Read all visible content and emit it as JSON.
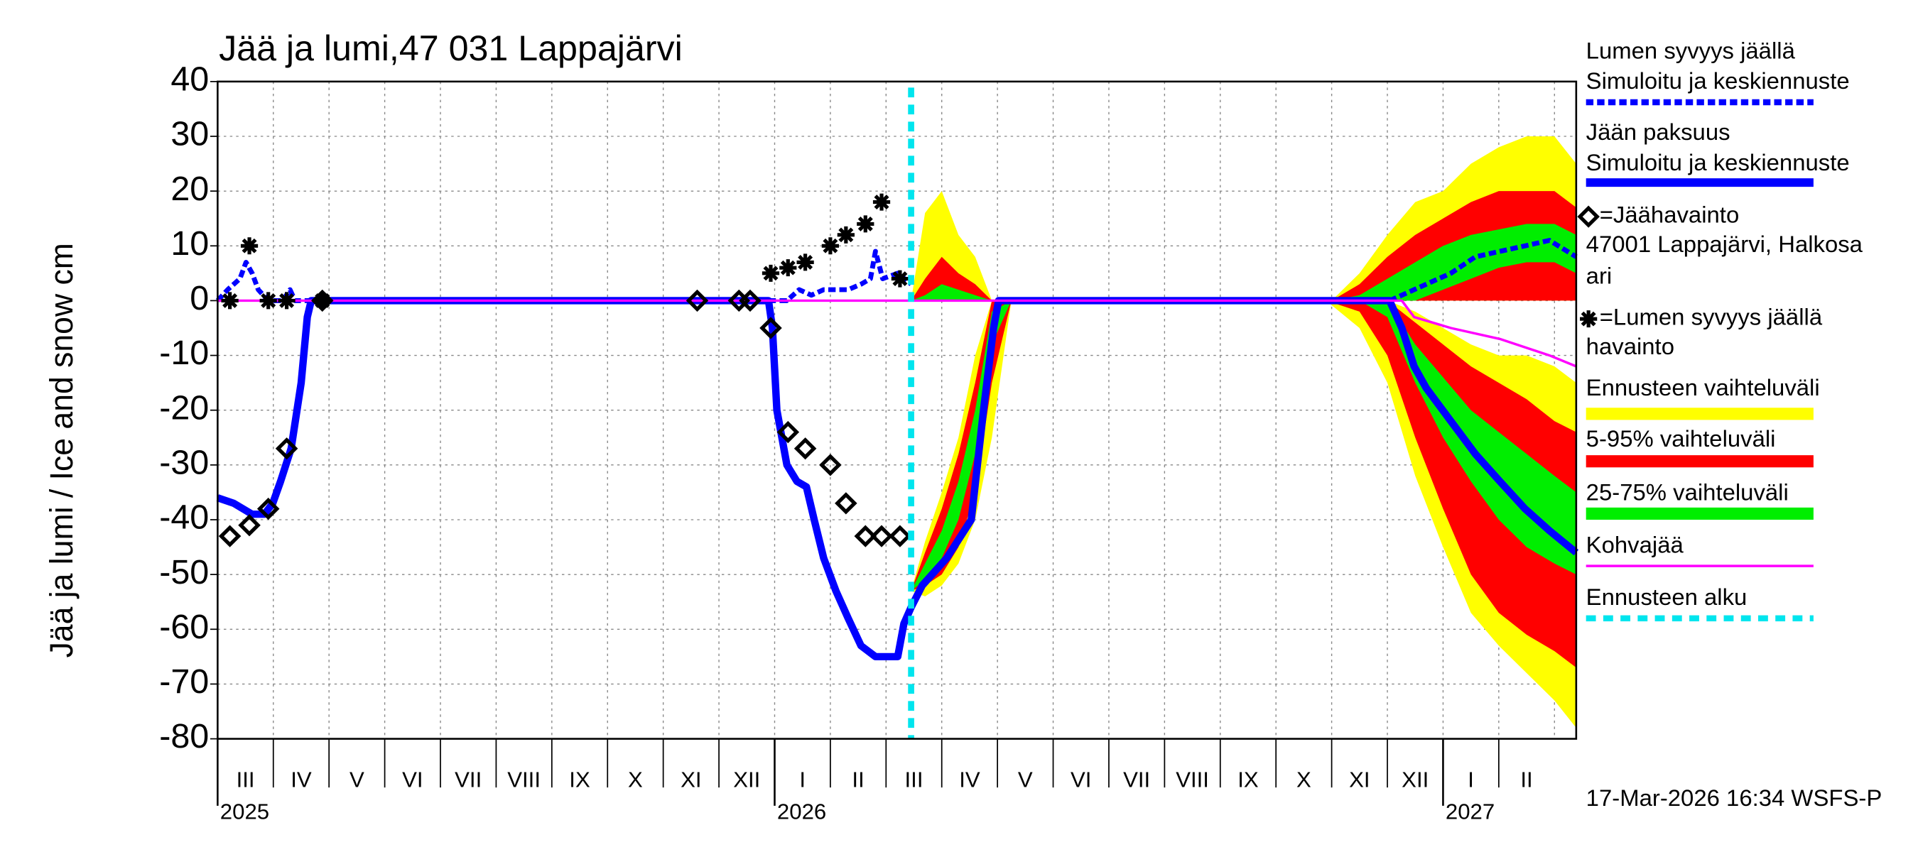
{
  "chart_data": {
    "type": "line",
    "title": "Jää ja lumi,47 031 Lappajärvi",
    "y_label": "Jää ja lumi / Ice and snow    cm",
    "footer": "17-Mar-2026 16:34 WSFS-P",
    "grid": true,
    "xlim": [
      0,
      24.39
    ],
    "ylim": [
      -80,
      40
    ],
    "yticks": [
      -80,
      -70,
      -60,
      -50,
      -40,
      -30,
      -20,
      -10,
      0,
      10,
      20,
      30,
      40
    ],
    "xticks": [
      {
        "value": 0.5,
        "label": "III"
      },
      {
        "value": 1.5,
        "label": "IV"
      },
      {
        "value": 2.5,
        "label": "V"
      },
      {
        "value": 3.5,
        "label": "VI"
      },
      {
        "value": 4.5,
        "label": "VII"
      },
      {
        "value": 5.5,
        "label": "VIII"
      },
      {
        "value": 6.5,
        "label": "IX"
      },
      {
        "value": 7.5,
        "label": "X"
      },
      {
        "value": 8.5,
        "label": "XI"
      },
      {
        "value": 9.5,
        "label": "XII"
      },
      {
        "value": 10.5,
        "label": "I"
      },
      {
        "value": 11.5,
        "label": "II"
      },
      {
        "value": 12.5,
        "label": "III"
      },
      {
        "value": 13.5,
        "label": "IV"
      },
      {
        "value": 14.5,
        "label": "V"
      },
      {
        "value": 15.5,
        "label": "VI"
      },
      {
        "value": 16.5,
        "label": "VII"
      },
      {
        "value": 17.5,
        "label": "VIII"
      },
      {
        "value": 18.5,
        "label": "IX"
      },
      {
        "value": 19.5,
        "label": "X"
      },
      {
        "value": 20.5,
        "label": "XI"
      },
      {
        "value": 21.5,
        "label": "XII"
      },
      {
        "value": 22.5,
        "label": "I"
      },
      {
        "value": 23.5,
        "label": "II"
      }
    ],
    "year_ticks": [
      {
        "value": 0,
        "label": "2025"
      },
      {
        "value": 10,
        "label": "2026"
      },
      {
        "value": 22,
        "label": "2027"
      }
    ],
    "series": [
      {
        "name": [
          "Lumen syvyys jäällä",
          "Simuloitu ja keskiennuste"
        ],
        "color": "#0000ff",
        "style": "dashed",
        "x": [
          0,
          0.18,
          0.4,
          0.51,
          0.62,
          0.73,
          0.91,
          1.17,
          1.3,
          1.39,
          1.68,
          null,
          9.89,
          10.22,
          10.44,
          10.66,
          10.88,
          11.32,
          11.55,
          11.72,
          11.81,
          11.94,
          12.21,
          12.45,
          null,
          21.04,
          21.48,
          22.14,
          22.58,
          23.02,
          23.47,
          23.91,
          24.39
        ],
        "values": [
          0,
          2,
          4,
          7,
          5,
          2,
          0,
          0,
          2,
          0,
          0,
          null,
          0,
          0,
          2,
          1,
          2,
          2,
          3,
          4,
          9,
          4,
          5,
          3,
          null,
          0,
          2,
          5,
          8,
          9,
          10,
          11,
          8
        ]
      },
      {
        "name": [
          "Jään paksuus",
          "Simuloitu ja keskiennuste"
        ],
        "color": "#0000ff",
        "style": "solid",
        "x": [
          0,
          0.29,
          0.62,
          0.84,
          0.99,
          1.13,
          1.32,
          1.5,
          1.61,
          1.68,
          9.89,
          9.96,
          10.04,
          10.22,
          10.4,
          10.57,
          10.71,
          10.88,
          11.1,
          11.32,
          11.55,
          11.81,
          12.21,
          12.32,
          12.45,
          12.65,
          13.09,
          13.53,
          13.75,
          13.93,
          14.02,
          21.04,
          21.26,
          21.48,
          21.7,
          22.14,
          22.58,
          23.02,
          23.47,
          23.91,
          24.39
        ],
        "values": [
          -36,
          -37,
          -39,
          -39,
          -37,
          -33,
          -27,
          -15,
          -3,
          0,
          0,
          -5,
          -20,
          -30,
          -33,
          -34,
          -40,
          -47,
          -53,
          -58,
          -63,
          -65,
          -65,
          -59,
          -56,
          -52,
          -47,
          -40,
          -20,
          -5,
          0,
          0,
          -5,
          -12,
          -16,
          -22,
          -28,
          -33,
          -38,
          -42,
          -46
        ]
      },
      {
        "name": [
          "=Jäähavainto",
          "47001 Lappajärvi, Halkosa",
          "ari"
        ],
        "color": "#000000",
        "marker": "diamond",
        "x": [
          0.22,
          0.57,
          0.91,
          1.24,
          1.88,
          8.61,
          9.36,
          9.56,
          9.93,
          10.24,
          10.55,
          11.0,
          11.28,
          11.63,
          11.92,
          12.25
        ],
        "values": [
          -43,
          -41,
          -38,
          -27,
          0,
          0,
          0,
          0,
          -5,
          -24,
          -27,
          -30,
          -37,
          -43,
          -43,
          -43
        ]
      },
      {
        "name": [
          "=Lumen syvyys jäällä",
          "havainto"
        ],
        "color": "#000000",
        "marker": "asterisk",
        "x": [
          0.22,
          0.57,
          0.91,
          1.24,
          1.88,
          9.93,
          10.24,
          10.55,
          11.0,
          11.28,
          11.63,
          11.92,
          12.25
        ],
        "values": [
          0,
          10,
          0,
          0,
          0,
          5,
          6,
          7,
          10,
          12,
          14,
          18,
          4
        ]
      },
      {
        "name": [
          "Kohvajää"
        ],
        "color": "#ff00ff",
        "style": "thin",
        "x": [
          0,
          21.26,
          21.48,
          22.14,
          23.02,
          23.91,
          24.39
        ],
        "values": [
          0,
          0,
          -3,
          -5,
          -7,
          -10,
          -12
        ]
      }
    ],
    "bands": [
      {
        "name": "Ennusteen vaihteluväli",
        "color": "#ffff00",
        "areas": [
          {
            "x": [
              12.45,
              12.7,
              13.0,
              13.3,
              13.6,
              13.9,
              14.25
            ],
            "low": [
              -53,
              -54,
              -52,
              -48,
              -40,
              -25,
              0
            ],
            "high": [
              -53,
              -44,
              -35,
              -25,
              -10,
              0,
              0
            ]
          },
          {
            "x": [
              12.45,
              12.7,
              13.0,
              13.3,
              13.6,
              13.9
            ],
            "low": [
              0,
              0,
              0,
              0,
              0,
              0
            ],
            "high": [
              0,
              16,
              20,
              12,
              8,
              0
            ]
          },
          {
            "x": [
              19.9,
              20.5,
              21.0,
              21.5,
              22.0,
              22.5,
              23.0,
              23.5,
              24.0,
              24.39
            ],
            "low": [
              0,
              -5,
              -15,
              -32,
              -45,
              -57,
              -63,
              -68,
              -73,
              -78
            ],
            "high": [
              0,
              0,
              0,
              -2,
              -5,
              -8,
              -10,
              -10,
              -12,
              -15
            ]
          },
          {
            "x": [
              20.0,
              20.5,
              21.0,
              21.5,
              22.0,
              22.5,
              23.0,
              23.5,
              24.0,
              24.39
            ],
            "low": [
              0,
              0,
              0,
              0,
              0,
              0,
              0,
              0,
              0,
              0
            ],
            "high": [
              0,
              5,
              12,
              18,
              20,
              25,
              28,
              30,
              30,
              25
            ]
          }
        ]
      },
      {
        "name": "5-95% vaihteluväli",
        "color": "#ff0000",
        "areas": [
          {
            "x": [
              12.45,
              12.7,
              13.0,
              13.3,
              13.6,
              13.9,
              14.25
            ],
            "low": [
              -53,
              -52,
              -50,
              -45,
              -35,
              -15,
              0
            ],
            "high": [
              -53,
              -46,
              -38,
              -28,
              -15,
              0,
              0
            ]
          },
          {
            "x": [
              12.45,
              12.7,
              13.0,
              13.3,
              13.6,
              13.9
            ],
            "low": [
              0,
              0,
              0,
              0,
              0,
              0
            ],
            "high": [
              0,
              4,
              8,
              5,
              3,
              0
            ]
          },
          {
            "x": [
              19.9,
              20.5,
              21.0,
              21.5,
              22.0,
              22.5,
              23.0,
              23.5,
              24.0,
              24.39
            ],
            "low": [
              0,
              -2,
              -10,
              -25,
              -38,
              -50,
              -57,
              -61,
              -64,
              -67
            ],
            "high": [
              0,
              0,
              0,
              -4,
              -8,
              -12,
              -15,
              -18,
              -22,
              -24
            ]
          },
          {
            "x": [
              20.0,
              20.5,
              21.0,
              21.5,
              22.0,
              22.5,
              23.0,
              23.5,
              24.0,
              24.39
            ],
            "low": [
              0,
              0,
              0,
              0,
              0,
              0,
              0,
              0,
              0,
              0
            ],
            "high": [
              0,
              3,
              8,
              12,
              15,
              18,
              20,
              20,
              20,
              17
            ]
          }
        ]
      },
      {
        "name": "25-75% vaihteluväli",
        "color": "#00ee00",
        "areas": [
          {
            "x": [
              12.45,
              12.7,
              13.0,
              13.3,
              13.6,
              13.9,
              14.25
            ],
            "low": [
              -53,
              -51,
              -47,
              -40,
              -28,
              -8,
              0
            ],
            "high": [
              -53,
              -48,
              -42,
              -33,
              -20,
              -2,
              0
            ]
          },
          {
            "x": [
              12.45,
              12.7,
              13.0,
              13.3,
              13.6,
              13.9
            ],
            "low": [
              0,
              0,
              0,
              0,
              0,
              0
            ],
            "high": [
              0,
              1,
              3,
              2,
              1,
              0
            ]
          },
          {
            "x": [
              19.9,
              20.5,
              21.0,
              21.5,
              22.0,
              22.5,
              23.0,
              23.5,
              24.0,
              24.39
            ],
            "low": [
              0,
              0,
              -3,
              -15,
              -25,
              -33,
              -40,
              -45,
              -48,
              -50
            ],
            "high": [
              0,
              0,
              0,
              -8,
              -14,
              -20,
              -24,
              -28,
              -32,
              -35
            ]
          },
          {
            "x": [
              20.0,
              20.5,
              21.0,
              21.5,
              22.0,
              22.5,
              23.0,
              23.5,
              24.0,
              24.39
            ],
            "low": [
              0,
              0,
              0,
              0,
              2,
              4,
              6,
              7,
              7,
              5
            ],
            "high": [
              0,
              1,
              4,
              7,
              10,
              12,
              13,
              14,
              14,
              12
            ]
          }
        ]
      }
    ],
    "forecast_start": {
      "name": "Ennusteen alku",
      "color": "#00e5ee",
      "x": 12.45
    }
  }
}
